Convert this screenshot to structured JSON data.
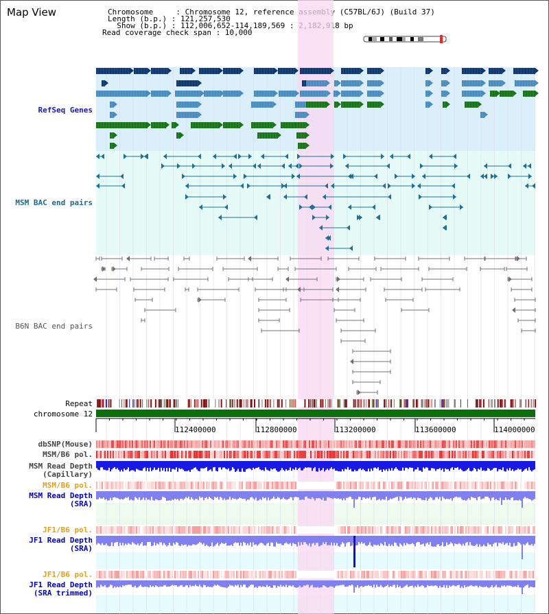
{
  "header": {
    "title": "Map View",
    "chrom_line": "Chromosome     : Chromosome 12, reference assembly (C57BL/6J) (Build 37)",
    "length_line": "Length (b.p.) : 121,257,530",
    "show_line": "  Show (b.p.) : 112,006,652-114,189,569 : 2,182,918 bp",
    "coverage_line": "Read coverage check span : 10,000"
  },
  "tracks": {
    "refseq": "RefSeq Genes",
    "msm_bac": "MSM BAC end pairs",
    "b6n_bac": "B6N BAC end pairs",
    "repeat": "Repeat",
    "chromosome": "chromosome 12",
    "dbsnp": "dbSNP(Mouse)",
    "msm_b6_pol": "MSM/B6 pol.",
    "msm_depth_cap_1": "MSM Read Depth",
    "msm_depth_cap_2": "(Capillary)",
    "msm_b6_pol2": "MSM/B6 pol.",
    "msm_depth_sra_1": "MSM Read Depth",
    "msm_depth_sra_2": "(SRA)",
    "jf1_b6_pol": "JF1/B6 pol.",
    "jf1_depth_sra_1": "JF1 Read Depth",
    "jf1_depth_sra_2": "(SRA)",
    "jf1_b6_pol2": "JF1/B6 pol.",
    "jf1_depth_trim_1": "JF1 Read Depth",
    "jf1_depth_trim_2": "(SRA trimmed)"
  },
  "axis": {
    "ticks": [
      "112400000",
      "112800000",
      "113200000",
      "113600000",
      "114000000"
    ]
  },
  "colors": {
    "refseq_bg": "#dbeffa",
    "msm_bac_bg": "#e6fbf8",
    "highlight": "#f9d7f1",
    "gene_dark": "#0e3770",
    "gene_mid": "#4a8cc0",
    "gene_green": "#187418",
    "msm_bac_line": "#1f6f96",
    "b6n_bac_line": "#707070",
    "chrom_bar": "#0a6e0a",
    "depth_blue": "#1a1ae6",
    "depth_lilac": "#8080f0",
    "msm_label": "#1a6a90",
    "refseq_label": "#1818b8",
    "pol_label_orange": "#e0a020",
    "depth_label_blue": "#0000c0"
  }
}
